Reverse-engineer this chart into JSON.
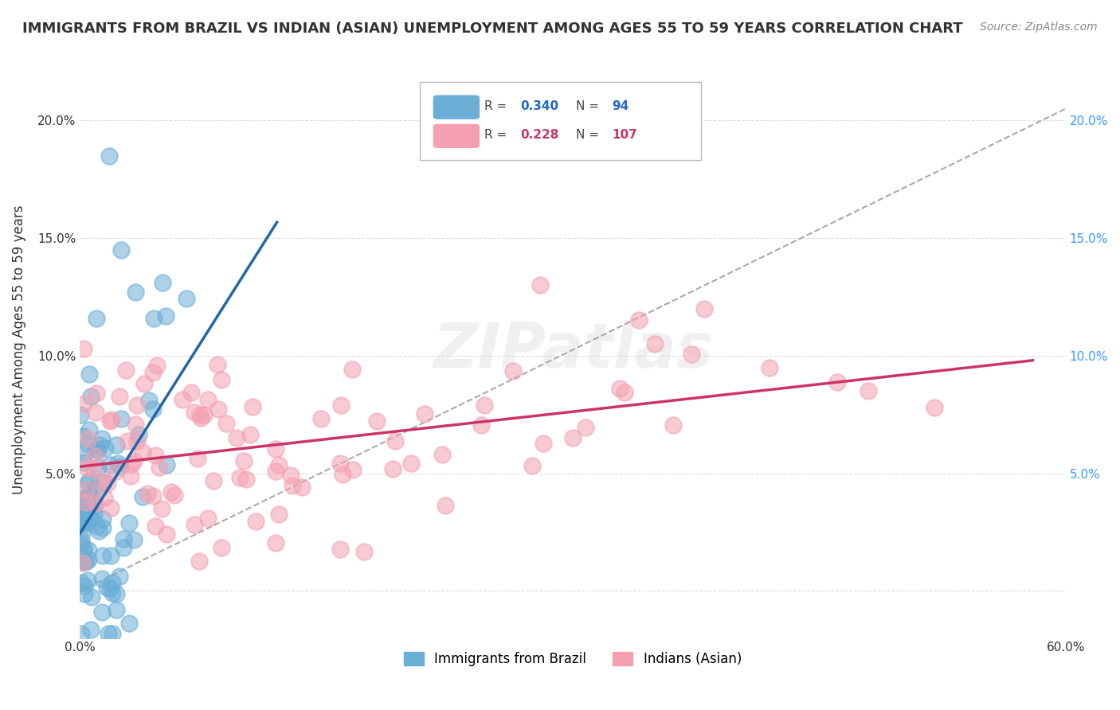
{
  "title": "IMMIGRANTS FROM BRAZIL VS INDIAN (ASIAN) UNEMPLOYMENT AMONG AGES 55 TO 59 YEARS CORRELATION CHART",
  "source": "Source: ZipAtlas.com",
  "ylabel": "Unemployment Among Ages 55 to 59 years",
  "xlabel_ticks": [
    "0.0%",
    "60.0%"
  ],
  "xlim": [
    0.0,
    0.6
  ],
  "ylim": [
    -0.02,
    0.225
  ],
  "yticks": [
    0.0,
    0.05,
    0.1,
    0.15,
    0.2
  ],
  "ytick_labels": [
    "",
    "5.0%",
    "10.0%",
    "15.0%",
    "20.0%"
  ],
  "xticks": [
    0.0,
    0.6
  ],
  "blue_R": 0.34,
  "blue_N": 94,
  "pink_R": 0.228,
  "pink_N": 107,
  "blue_color": "#6aaed6",
  "pink_color": "#f4a0b0",
  "blue_line_color": "#2266aa",
  "pink_line_color": "#cc3366",
  "legend1": "Immigrants from Brazil",
  "legend2": "Indians (Asian)",
  "watermark": "ZIPatlas",
  "background_color": "#ffffff",
  "grid_color": "#dddddd",
  "title_color": "#333333",
  "axis_label_color": "#333333",
  "right_axis_color": "#3399ff"
}
